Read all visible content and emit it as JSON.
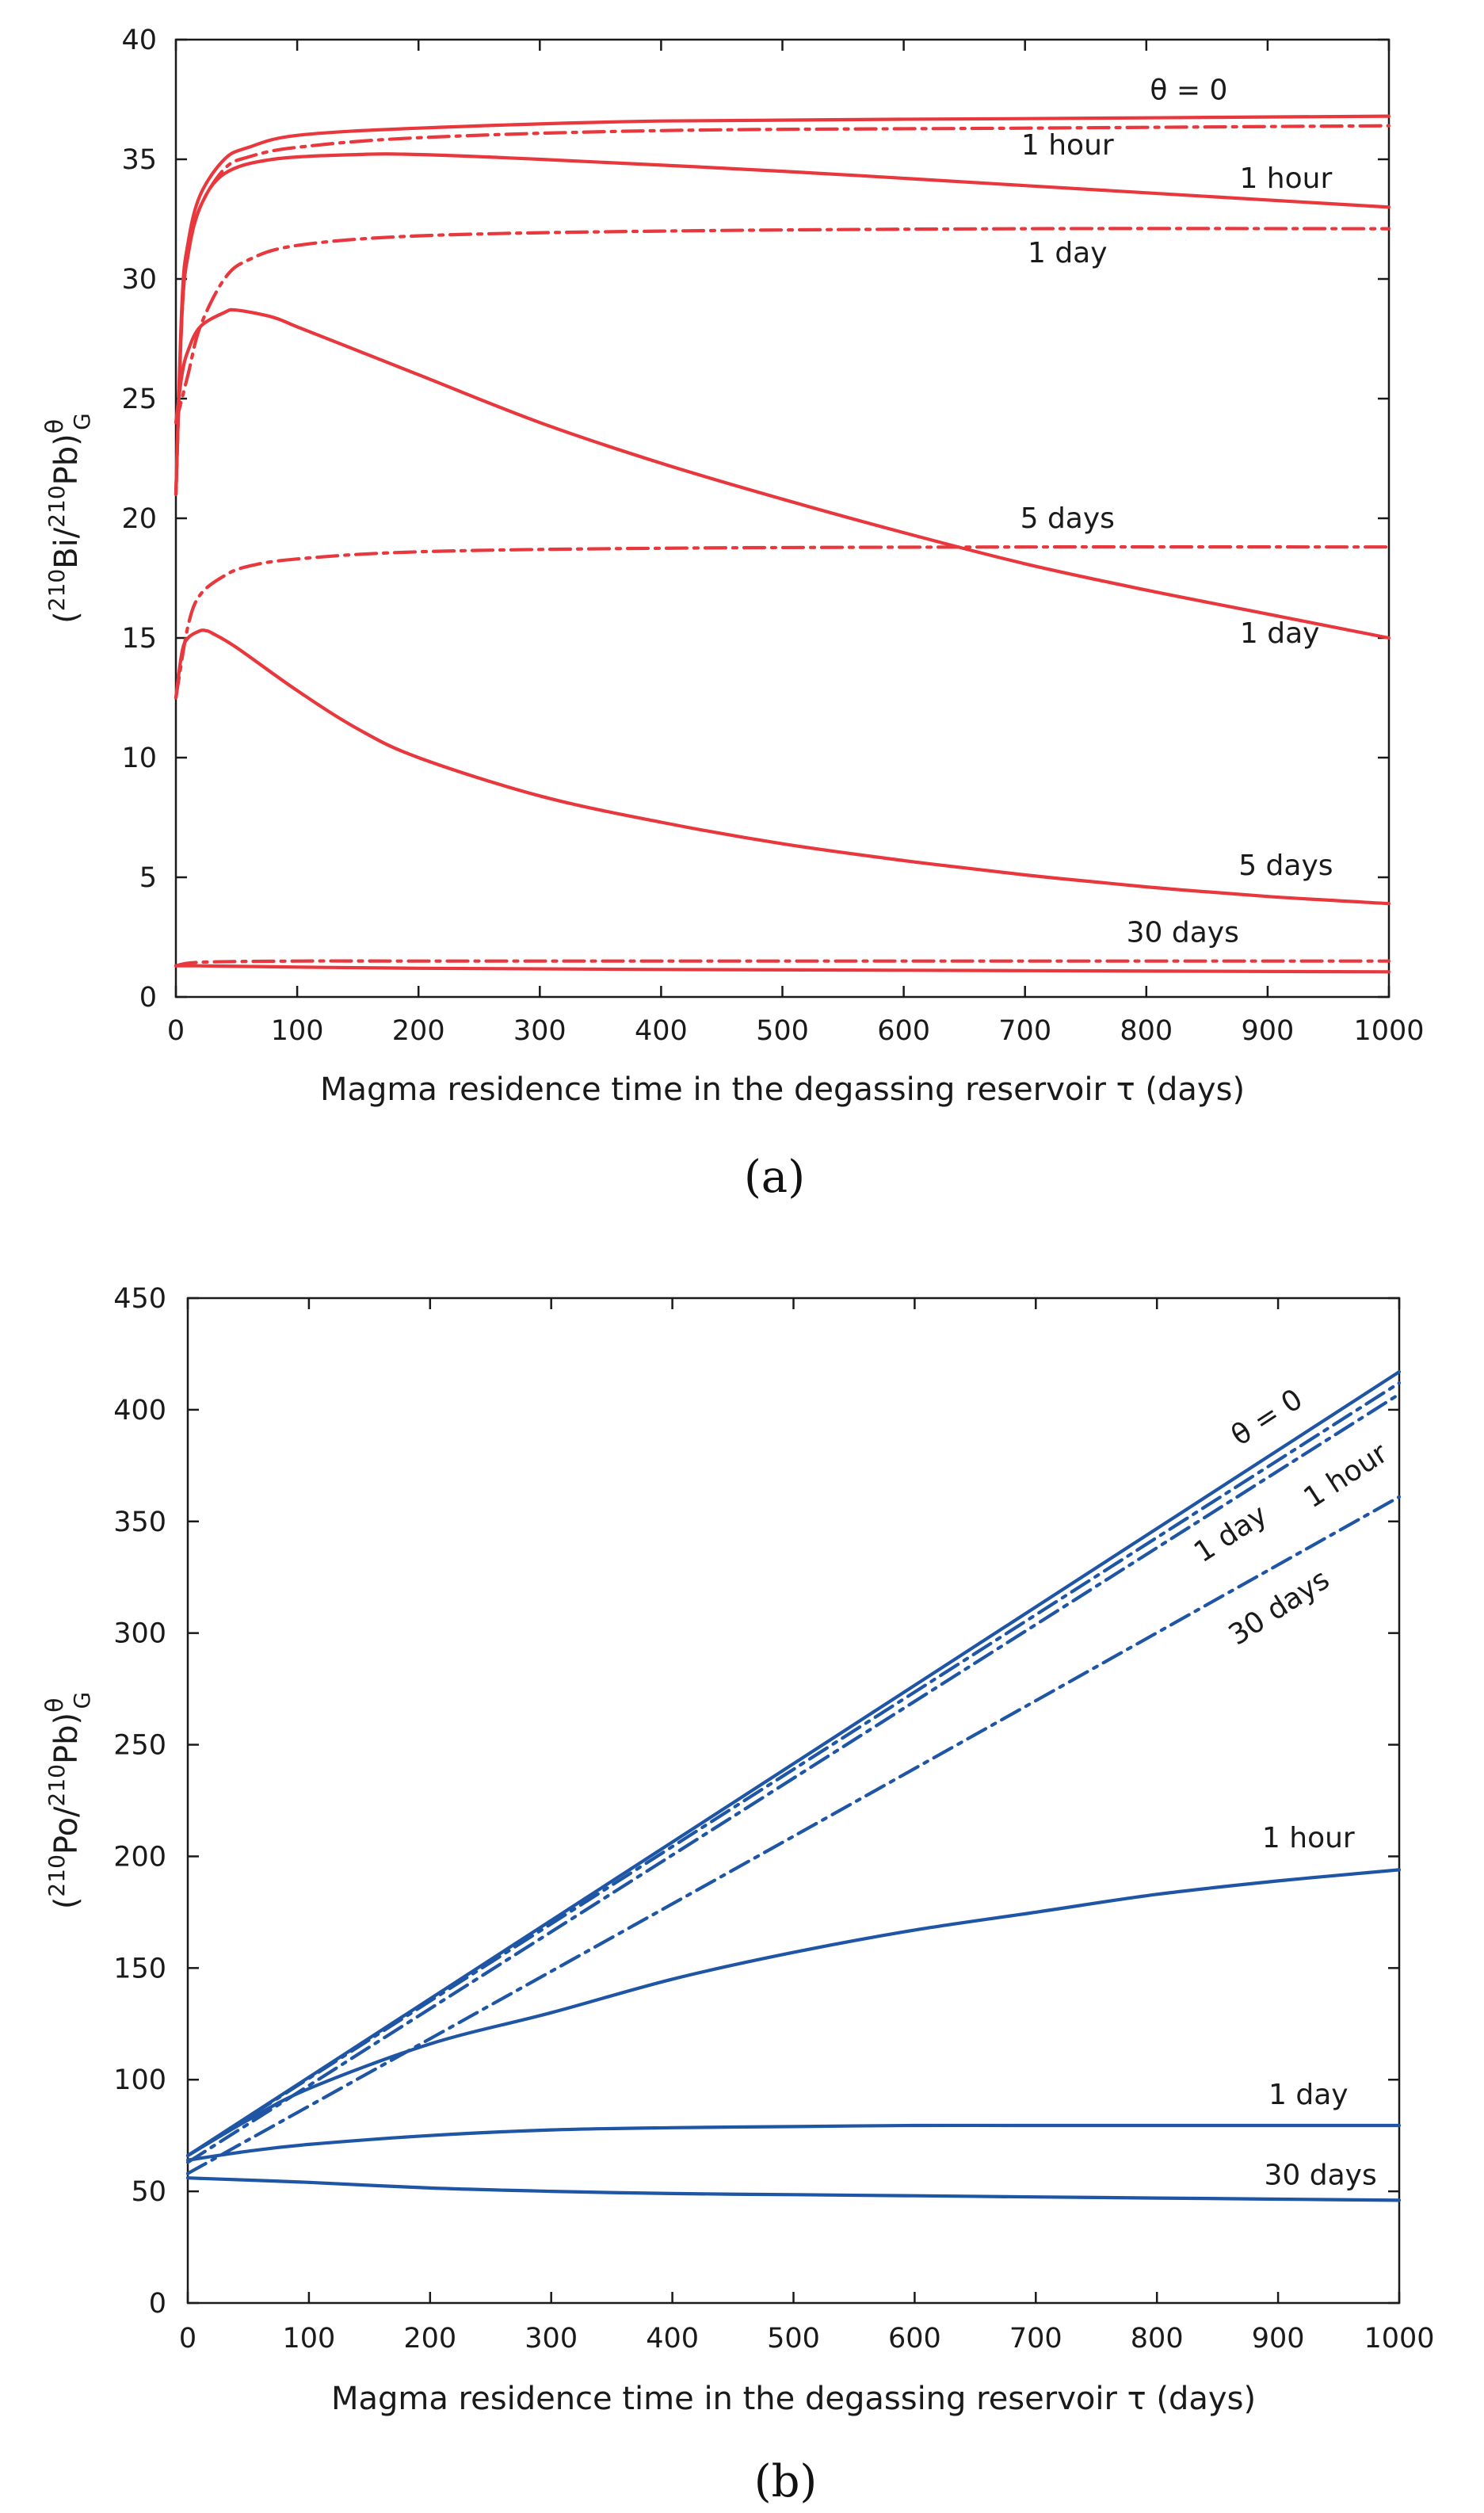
{
  "colors": {
    "panel_a": "#e8383d",
    "panel_b": "#1f55a5",
    "axis": "#1a1a1a"
  },
  "chart_data": [
    {
      "type": "line",
      "caption": "(a)",
      "xlabel": "Magma residence time in the degassing reservoir  τ  (days)",
      "ylabel": {
        "open": "(",
        "sup1": "210",
        "mid": "Bi/",
        "sup2": "210",
        "close": "Pb)",
        "sup3": "θ",
        "sub": "G"
      },
      "xlim": [
        0,
        1000
      ],
      "ylim": [
        0,
        40
      ],
      "xticks": [
        0,
        100,
        200,
        300,
        400,
        500,
        600,
        700,
        800,
        900,
        1000
      ],
      "yticks": [
        0,
        5,
        10,
        15,
        20,
        25,
        30,
        35,
        40
      ],
      "grid": false,
      "series": [
        {
          "style": "solid",
          "label": "θ = 0",
          "x": [
            0,
            5,
            10,
            20,
            40,
            60,
            100,
            200,
            400,
            700,
            1000
          ],
          "y": [
            21,
            29,
            31.5,
            33.5,
            35,
            35.5,
            36,
            36.3,
            36.6,
            36.7,
            36.8
          ]
        },
        {
          "style": "dashdot",
          "label": "1 hour",
          "x": [
            0,
            5,
            10,
            20,
            40,
            60,
            100,
            200,
            400,
            700,
            1000
          ],
          "y": [
            21,
            28.5,
            31,
            33,
            34.6,
            35.1,
            35.5,
            35.9,
            36.2,
            36.3,
            36.4
          ]
        },
        {
          "style": "solid",
          "label": "1 hour",
          "x": [
            0,
            5,
            10,
            20,
            40,
            80,
            150,
            200,
            300,
            500,
            700,
            1000
          ],
          "y": [
            21,
            28.5,
            31,
            33,
            34.4,
            35,
            35.2,
            35.2,
            35,
            34.5,
            33.9,
            33
          ]
        },
        {
          "style": "dashdot",
          "label": "1 day",
          "x": [
            0,
            10,
            20,
            40,
            60,
            100,
            200,
            400,
            700,
            1000
          ],
          "y": [
            24,
            26,
            28,
            30,
            30.8,
            31.4,
            31.8,
            32,
            32.1,
            32.1
          ]
        },
        {
          "style": "solid",
          "label": "1 day",
          "x": [
            0,
            5,
            10,
            20,
            40,
            50,
            80,
            100,
            150,
            200,
            300,
            400,
            500,
            600,
            700,
            800,
            900,
            1000
          ],
          "y": [
            24,
            26,
            27,
            28,
            28.6,
            28.7,
            28.4,
            28,
            27,
            26,
            24,
            22.3,
            20.8,
            19.4,
            18.1,
            17,
            16,
            15
          ]
        },
        {
          "style": "dashdot",
          "label": "5 days",
          "x": [
            0,
            10,
            20,
            40,
            60,
            100,
            200,
            400,
            700,
            1000
          ],
          "y": [
            12.5,
            15.5,
            16.8,
            17.6,
            18,
            18.3,
            18.6,
            18.75,
            18.8,
            18.8
          ]
        },
        {
          "style": "solid",
          "label": "5 days",
          "x": [
            0,
            5,
            10,
            20,
            25,
            30,
            50,
            100,
            150,
            200,
            300,
            400,
            500,
            600,
            700,
            800,
            900,
            1000
          ],
          "y": [
            12.5,
            14.4,
            15,
            15.3,
            15.3,
            15.2,
            14.6,
            12.8,
            11.2,
            10,
            8.4,
            7.3,
            6.4,
            5.7,
            5.1,
            4.6,
            4.2,
            3.9
          ]
        },
        {
          "style": "dashdot",
          "label": "30 days",
          "x": [
            0,
            20,
            100,
            200,
            400,
            700,
            1000
          ],
          "y": [
            1.3,
            1.45,
            1.5,
            1.5,
            1.5,
            1.5,
            1.5
          ]
        },
        {
          "style": "solid",
          "label": "30 days",
          "x": [
            0,
            20,
            100,
            200,
            400,
            700,
            1000
          ],
          "y": [
            1.3,
            1.3,
            1.25,
            1.2,
            1.15,
            1.1,
            1.05
          ]
        }
      ],
      "annotations": [
        {
          "text": "θ = 0",
          "x": 835,
          "y": 37.5
        },
        {
          "text": "1 hour",
          "x": 735,
          "y": 35.2
        },
        {
          "text": "1 hour",
          "x": 915,
          "y": 33.8
        },
        {
          "text": "1 day",
          "x": 735,
          "y": 30.7
        },
        {
          "text": "5 days",
          "x": 735,
          "y": 19.6
        },
        {
          "text": "1 day",
          "x": 910,
          "y": 14.8
        },
        {
          "text": "5 days",
          "x": 915,
          "y": 5.1
        },
        {
          "text": "30 days",
          "x": 830,
          "y": 2.3
        }
      ]
    },
    {
      "type": "line",
      "caption": "(b)",
      "xlabel": "Magma residence time in the degassing reservoir  τ  (days)",
      "ylabel": {
        "open": "(",
        "sup1": "210",
        "mid": "Po/",
        "sup2": "210",
        "close": "Pb)",
        "sup3": "θ",
        "sub": "G"
      },
      "xlim": [
        0,
        1000
      ],
      "ylim": [
        0,
        450
      ],
      "xticks": [
        0,
        100,
        200,
        300,
        400,
        500,
        600,
        700,
        800,
        900,
        1000
      ],
      "yticks": [
        0,
        50,
        100,
        150,
        200,
        250,
        300,
        350,
        400,
        450
      ],
      "grid": false,
      "series": [
        {
          "style": "solid",
          "label": "θ = 0",
          "x": [
            0,
            500,
            1000
          ],
          "y": [
            66,
            241.5,
            417
          ]
        },
        {
          "style": "dashdot",
          "label": "1 hour",
          "x": [
            0,
            500,
            1000
          ],
          "y": [
            66,
            239,
            412
          ]
        },
        {
          "style": "dashdot",
          "label": "1 day",
          "x": [
            0,
            500,
            1000
          ],
          "y": [
            63,
            235,
            407
          ]
        },
        {
          "style": "dashdot",
          "label": "30 days",
          "x": [
            0,
            500,
            1000
          ],
          "y": [
            58,
            209,
            361
          ]
        },
        {
          "style": "solid",
          "label": "1 hour",
          "x": [
            0,
            50,
            100,
            200,
            300,
            400,
            500,
            600,
            700,
            800,
            900,
            1000
          ],
          "y": [
            66,
            82,
            96,
            116,
            130,
            145,
            157,
            167,
            175,
            183,
            189,
            194
          ]
        },
        {
          "style": "solid",
          "label": "1 day",
          "x": [
            0,
            50,
            100,
            200,
            300,
            400,
            500,
            600,
            700,
            800,
            900,
            1000
          ],
          "y": [
            64,
            68,
            71,
            75,
            77.5,
            78.5,
            79,
            79.5,
            79.5,
            79.5,
            79.5,
            79.5
          ]
        },
        {
          "style": "solid",
          "label": "30 days",
          "x": [
            0,
            100,
            200,
            300,
            400,
            500,
            600,
            700,
            800,
            900,
            1000
          ],
          "y": [
            56,
            54,
            51.5,
            50,
            49,
            48.5,
            48,
            47.5,
            47,
            46.5,
            46
          ]
        }
      ],
      "annotations": [
        {
          "text": "θ = 0",
          "x": 895,
          "y": 393,
          "rotate": -33
        },
        {
          "text": "1 hour",
          "x": 960,
          "y": 367,
          "rotate": -33
        },
        {
          "text": "1 day",
          "x": 865,
          "y": 341,
          "rotate": -33
        },
        {
          "text": "30 days",
          "x": 905,
          "y": 308,
          "rotate": -33
        },
        {
          "text": "1 hour",
          "x": 925,
          "y": 204
        },
        {
          "text": "1 day",
          "x": 925,
          "y": 89
        },
        {
          "text": "30 days",
          "x": 935,
          "y": 53
        }
      ]
    }
  ]
}
